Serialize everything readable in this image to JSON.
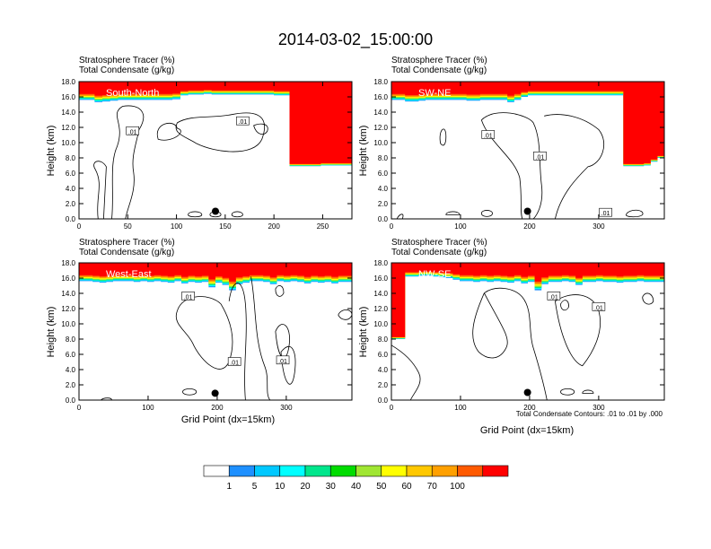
{
  "title": "2014-03-02_15:00:00",
  "field_label_1": "Stratosphere Tracer   (%)",
  "field_label_2": "Total Condensate   (g/kg)",
  "y_label": "Height (km)",
  "x_label": "Grid Point (dx=15km)",
  "contour_note": "Total Condensate Contours: .01 to .01 by .000",
  "colorbar": {
    "levels": [
      "1",
      "5",
      "10",
      "20",
      "30",
      "40",
      "50",
      "60",
      "70",
      "100"
    ],
    "colors": [
      "#ffffff",
      "#1e90ff",
      "#1ec8ff",
      "#00ffff",
      "#00e68c",
      "#00dc00",
      "#a0e632",
      "#ffff00",
      "#ffc800",
      "#ffa000",
      "#ff5a00",
      "#ff0000"
    ]
  },
  "chart_data": [
    {
      "type": "contour",
      "name": "South-North",
      "title": "South-North",
      "ylim": [
        0,
        18
      ],
      "yticks": [
        "0.0",
        "2.0",
        "4.0",
        "6.0",
        "8.0",
        "10.0",
        "12.0",
        "14.0",
        "16.0",
        "18.0"
      ],
      "xlim": [
        0,
        280
      ],
      "xticks": [
        0,
        50,
        100,
        150,
        200,
        250
      ],
      "tracer_base_km": [
        15.6,
        15.6,
        15.3,
        15.4,
        15.5,
        15.6,
        15.6,
        15.6,
        15.6,
        15.6,
        15.6,
        15.6,
        15.7,
        16.2,
        16.3,
        16.3,
        16.4,
        16.3,
        16.3,
        16.3,
        16.3,
        16.3,
        16.3,
        16.3,
        16.3,
        16.2,
        16.2,
        6.9,
        6.9,
        6.9,
        6.9,
        7.0,
        7.0,
        7.0,
        7.0
      ],
      "contour_labels": [
        {
          "text": ".01",
          "x": 55,
          "y": 11.5
        },
        {
          "text": ".01",
          "x": 168,
          "y": 12.8
        }
      ],
      "marker": {
        "x": 140,
        "y": 1.0
      }
    },
    {
      "type": "contour",
      "name": "SW-NE",
      "title": "SW-NE",
      "ylim": [
        0,
        18
      ],
      "yticks": [
        "0.0",
        "2.0",
        "4.0",
        "6.0",
        "8.0",
        "10.0",
        "12.0",
        "14.0",
        "16.0",
        "18.0"
      ],
      "xlim": [
        0,
        395
      ],
      "xticks": [
        0,
        100,
        200,
        300
      ],
      "tracer_base_km": [
        15.6,
        15.6,
        15.4,
        15.4,
        15.5,
        15.6,
        15.6,
        15.6,
        15.6,
        15.6,
        15.6,
        15.5,
        15.5,
        15.6,
        15.6,
        15.6,
        15.6,
        15.3,
        15.6,
        16.0,
        16.2,
        16.2,
        16.2,
        16.2,
        16.2,
        16.2,
        16.2,
        16.2,
        16.2,
        16.2,
        16.2,
        16.2,
        16.2,
        16.2,
        6.9,
        6.9,
        6.9,
        7.0,
        7.5,
        8.0
      ],
      "contour_labels": [
        {
          "text": ".01",
          "x": 140,
          "y": 11.0
        },
        {
          "text": ".01",
          "x": 215,
          "y": 8.2
        },
        {
          "text": ".01",
          "x": 310,
          "y": 0.8
        }
      ],
      "marker": {
        "x": 197,
        "y": 1.0
      }
    },
    {
      "type": "contour",
      "name": "West-East",
      "title": "West-East",
      "ylim": [
        0,
        18
      ],
      "yticks": [
        "0.0",
        "2.0",
        "4.0",
        "6.0",
        "8.0",
        "10.0",
        "12.0",
        "14.0",
        "16.0",
        "18.0"
      ],
      "xlim": [
        0,
        395
      ],
      "xticks": [
        0,
        100,
        200,
        300
      ],
      "tracer_base_km": [
        15.6,
        15.6,
        15.5,
        15.4,
        15.5,
        15.6,
        15.6,
        15.6,
        15.5,
        15.6,
        15.5,
        15.6,
        15.5,
        15.4,
        15.6,
        15.3,
        15.5,
        15.4,
        15.5,
        14.8,
        15.4,
        15.1,
        14.4,
        15.2,
        15.4,
        15.6,
        15.6,
        15.5,
        15.2,
        15.6,
        15.5,
        15.6,
        15.5,
        15.3,
        15.5,
        15.4,
        15.5,
        15.3,
        15.5,
        15.5
      ],
      "contour_labels": [
        {
          "text": ".01",
          "x": 158,
          "y": 13.6
        },
        {
          "text": ".01",
          "x": 225,
          "y": 5.0
        },
        {
          "text": ".01",
          "x": 295,
          "y": 5.2
        }
      ],
      "marker": {
        "x": 197,
        "y": 0.9
      }
    },
    {
      "type": "contour",
      "name": "NW-SE",
      "title": "NW-SE",
      "ylim": [
        0,
        18
      ],
      "yticks": [
        "0.0",
        "2.0",
        "4.0",
        "6.0",
        "8.0",
        "10.0",
        "12.0",
        "14.0",
        "16.0",
        "18.0"
      ],
      "xlim": [
        0,
        395
      ],
      "xticks": [
        0,
        100,
        200,
        300
      ],
      "tracer_base_km": [
        8.0,
        8.0,
        16.2,
        16.2,
        16.3,
        16.3,
        16.2,
        16.1,
        16.0,
        15.8,
        15.6,
        15.6,
        15.5,
        15.6,
        15.5,
        15.6,
        15.5,
        15.4,
        15.6,
        15.3,
        15.5,
        14.4,
        15.2,
        15.5,
        15.5,
        15.6,
        15.5,
        15.1,
        15.5,
        15.5,
        15.6,
        15.5,
        15.5,
        15.4,
        15.5,
        15.5,
        15.6,
        15.5,
        15.5,
        15.5
      ],
      "contour_labels": [
        {
          "text": ".01",
          "x": 235,
          "y": 13.6
        },
        {
          "text": ".01",
          "x": 300,
          "y": 12.2
        }
      ],
      "marker": {
        "x": 197,
        "y": 1.0
      }
    }
  ]
}
